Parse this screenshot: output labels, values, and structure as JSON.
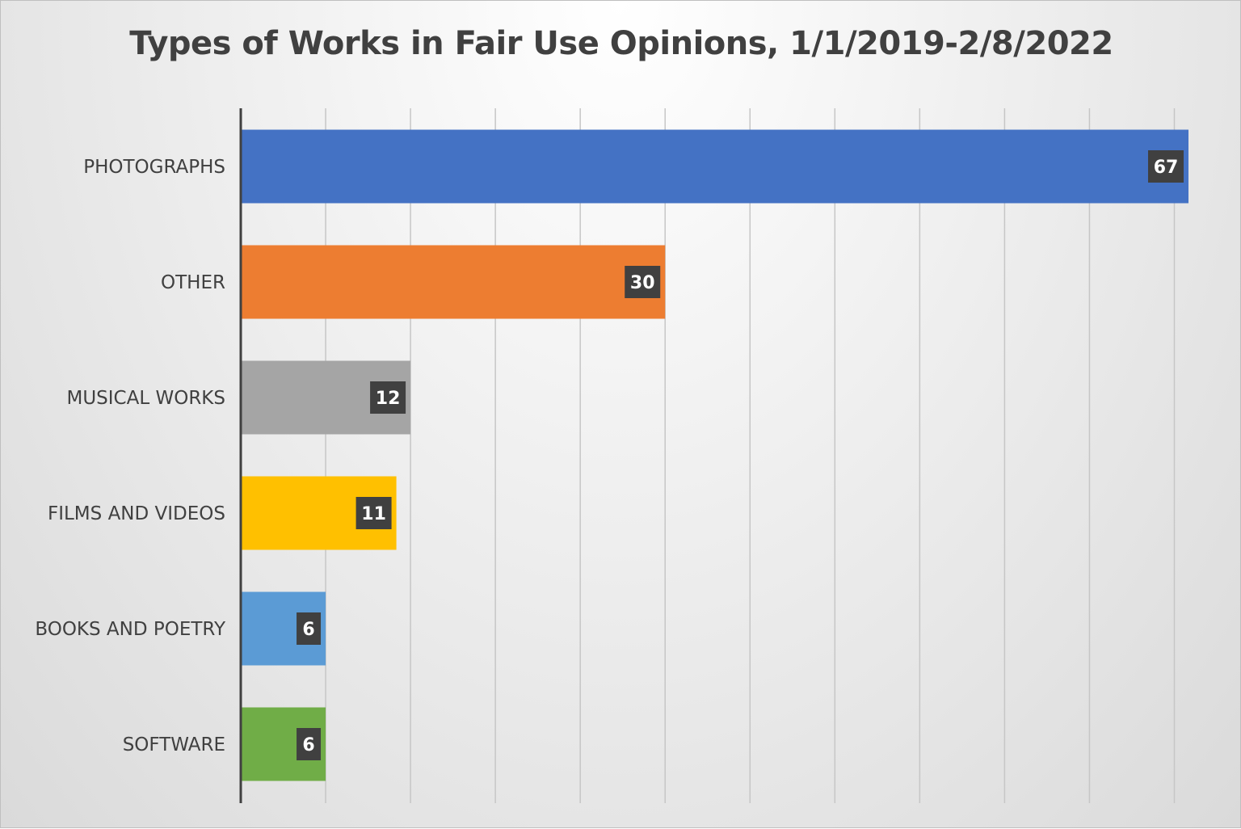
{
  "chart_data": {
    "type": "bar",
    "orientation": "horizontal",
    "title": "Types of Works in Fair Use Opinions, 1/1/2019-2/8/2022",
    "xlabel": "",
    "ylabel": "",
    "xlim": [
      0,
      70
    ],
    "grid": true,
    "legend": "none",
    "categories": [
      "PHOTOGRAPHS",
      "OTHER",
      "MUSICAL WORKS",
      "FILMS AND VIDEOS",
      "BOOKS AND POETRY",
      "SOFTWARE"
    ],
    "values": [
      67,
      30,
      12,
      11,
      6,
      6
    ],
    "colors": [
      "#4472C4",
      "#ED7D31",
      "#A5A5A5",
      "#FFC000",
      "#5B9BD5",
      "#70AD47"
    ],
    "data_labels": true
  }
}
